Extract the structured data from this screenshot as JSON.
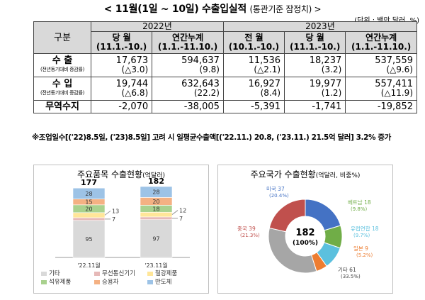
{
  "title": {
    "main": "< 11월(1일 ~ 10일) 수출입실적",
    "sub": "(통관기준 잠정치) >"
  },
  "unit": "(단위 : 백만 달러, %)",
  "table": {
    "header_group": "구분",
    "year2022": "2022년",
    "year2023": "2023년",
    "cols": [
      {
        "name": "당 월",
        "period": "(11.1.-10.)"
      },
      {
        "name": "연간누계",
        "period": "(1.1.-11.10.)"
      },
      {
        "name": "전 월",
        "period": "(10.1.-10.)"
      },
      {
        "name": "당 월",
        "period": "(11.1.-10.)"
      },
      {
        "name": "연간누계",
        "period": "(1.1.-11.10.)"
      }
    ],
    "rows": [
      {
        "label": "수 출",
        "sub": "(전년동기대비 증감률)",
        "values": [
          "17,673",
          "594,637",
          "11,536",
          "18,237",
          "537,559"
        ],
        "rates": [
          "(△3.0)",
          "(9.8)",
          "(△2.1)",
          "(3.2)",
          "(△9.6)"
        ]
      },
      {
        "label": "수 입",
        "sub": "(전년동기대비 증감률)",
        "values": [
          "19,744",
          "632,643",
          "16,927",
          "19,977",
          "557,411"
        ],
        "rates": [
          "(△6.8)",
          "(22.2)",
          "(8.4)",
          "(1.2)",
          "(△11.9)"
        ]
      },
      {
        "label": "무역수지",
        "values": [
          "-2,070",
          "-38,005",
          "-5,391",
          "-1,741",
          "-19,852"
        ]
      }
    ]
  },
  "note": "※조업일수[('22)8.5일, ('23)8.5일] 고려 시 일평균수출액[('22.11.) 20.8, ('23.11.) 21.5억 달러] 3.2% 증가",
  "left_panel": {
    "title": "주요품목 수출현황",
    "title_unit": "(억달러)",
    "legend": [
      "기타",
      "무선통신기기",
      "철강제품",
      "석유제품",
      "승용차",
      "반도체"
    ],
    "colors": {
      "기타": "#d9d9d9",
      "무선통신기기": "#e6b9b8",
      "철강제품": "#ffe699",
      "석유제품": "#a9d18e",
      "승용차": "#f4b183",
      "반도체": "#9dc3e6"
    }
  },
  "right_panel": {
    "title": "주요국가 수출현황",
    "title_unit": "(억달러, 비중%)",
    "center_value": "182",
    "center_pct": "(100%)",
    "colors": {
      "미국": "#4472c4",
      "베트남": "#70ad47",
      "유럽연합": "#5bc0de",
      "일본": "#ed7d31",
      "기타": "#a6a6a6",
      "중국": "#c0504d"
    }
  },
  "chart_data": [
    {
      "type": "bar",
      "stacked": true,
      "categories": [
        "'22.11월",
        "'23.11월"
      ],
      "totals": [
        177,
        182
      ],
      "series": [
        {
          "name": "기타",
          "values": [
            95,
            97
          ]
        },
        {
          "name": "무선통신기기",
          "values": [
            7,
            7
          ]
        },
        {
          "name": "철강제품",
          "values": [
            13,
            12
          ]
        },
        {
          "name": "석유제품",
          "values": [
            20,
            18
          ]
        },
        {
          "name": "승용차",
          "values": [
            15,
            20
          ]
        },
        {
          "name": "반도체",
          "values": [
            28,
            28
          ]
        }
      ]
    },
    {
      "type": "pie",
      "donut": true,
      "slices": [
        {
          "name": "미국",
          "value": 37,
          "share": "(20.4%)"
        },
        {
          "name": "베트남",
          "value": 18,
          "share": "(9.8%)"
        },
        {
          "name": "유럽연합",
          "value": 18,
          "share": "(9.7%)"
        },
        {
          "name": "일본",
          "value": 9,
          "share": "(5.2%)"
        },
        {
          "name": "기타",
          "value": 61,
          "share": "(33.5%)"
        },
        {
          "name": "중국",
          "value": 39,
          "share": "(21.3%)"
        }
      ]
    }
  ]
}
